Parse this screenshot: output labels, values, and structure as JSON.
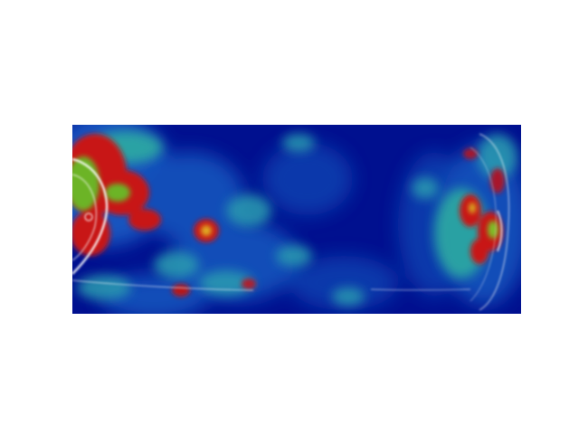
{
  "image": {
    "kind": "heatmap-overlay",
    "colormap": "jet",
    "colors": {
      "background": "#ffffff",
      "low": "#00108f",
      "mid_low": "#1060c8",
      "mid": "#2fb0a0",
      "mid_high": "#9bd020",
      "high": "#d01010",
      "highlight": "#ffffff"
    }
  }
}
